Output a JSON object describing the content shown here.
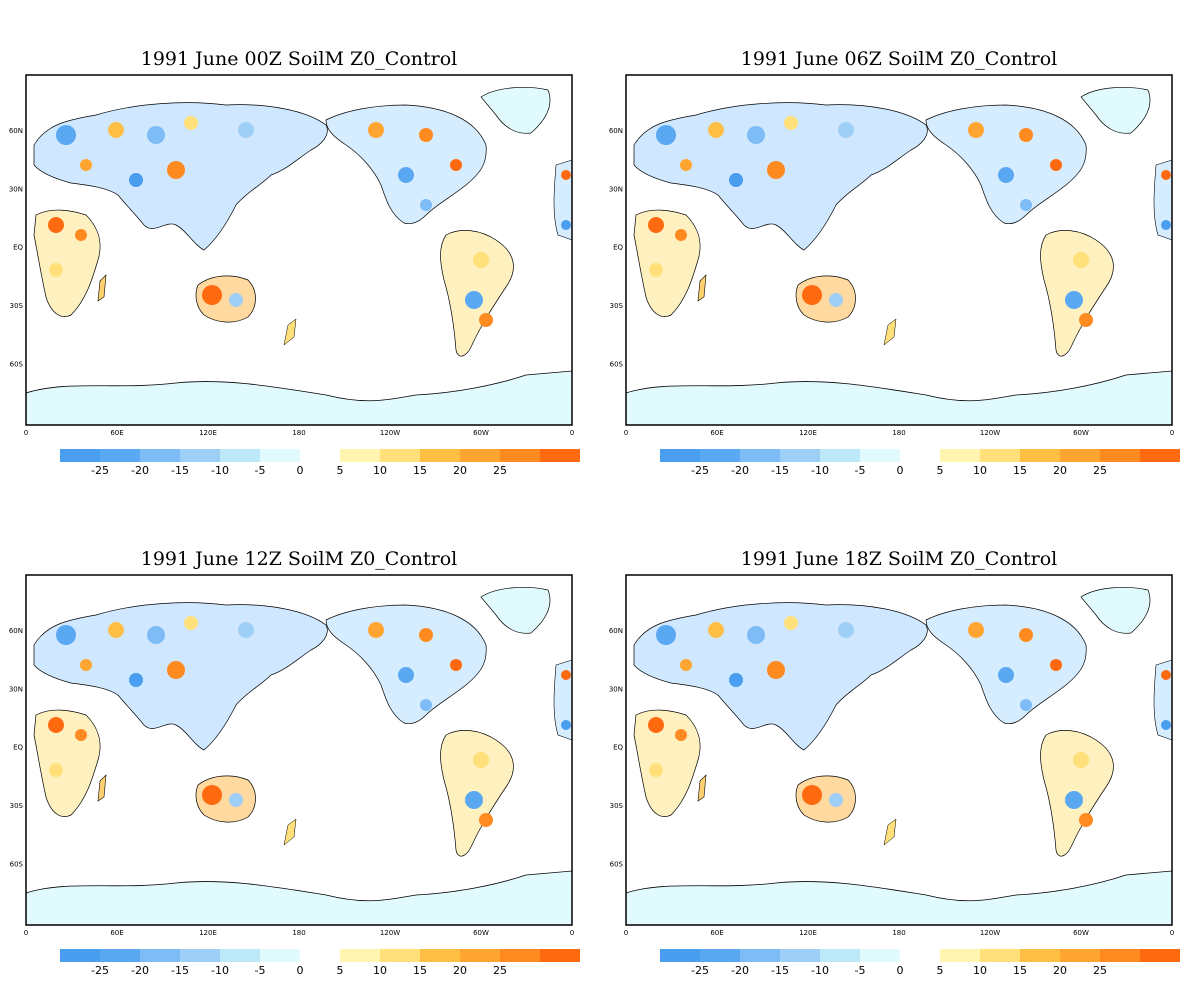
{
  "panels": [
    {
      "title": "1991 June  00Z SoilM Z0_Control"
    },
    {
      "title": "1991  June 06Z SoilM Z0_Control"
    },
    {
      "title": "1991  June 12Z SoilM Z0_Control"
    },
    {
      "title": "1991  June 18Z SoilM Z0_Control"
    }
  ],
  "axes": {
    "x_ticks": [
      "0",
      "60E",
      "120E",
      "180",
      "120W",
      "60W",
      "0"
    ],
    "y_ticks": [
      "60N",
      "30N",
      "EQ",
      "30S",
      "60S"
    ]
  },
  "colorbar": {
    "negative": {
      "colors": [
        "#4a9ef0",
        "#5aa8f2",
        "#7dbcf4",
        "#9ecff7",
        "#bde8f7",
        "#e0fafd"
      ],
      "labels": [
        "-25",
        "-20",
        "-15",
        "-10",
        "-5",
        "0"
      ]
    },
    "positive": {
      "colors": [
        "#fff5b0",
        "#ffe07a",
        "#ffbf45",
        "#ffa530",
        "#ff8a20",
        "#ff6a10"
      ],
      "labels": [
        "5",
        "10",
        "15",
        "20",
        "25"
      ]
    }
  },
  "colors": {
    "ice": "#e0fafd",
    "frame": "#000000"
  }
}
